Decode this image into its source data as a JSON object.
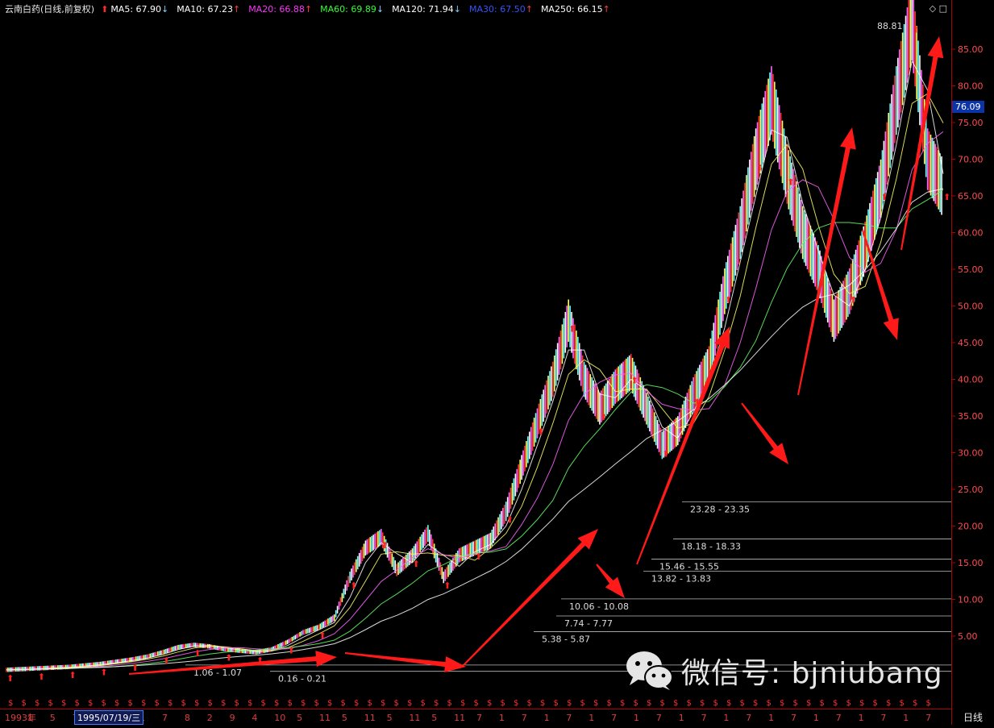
{
  "header": {
    "title": "云南白药(日线,前复权)",
    "ma": [
      {
        "label": "MA5: 67.90",
        "trend": "↓",
        "color": "#ffffff"
      },
      {
        "label": "MA10: 67.23",
        "trend": "↑",
        "color": "#ffffff"
      },
      {
        "label": "MA20: 66.88",
        "trend": "↑",
        "color": "#ff33ff"
      },
      {
        "label": "MA60: 69.89",
        "trend": "↓",
        "color": "#33ff33"
      },
      {
        "label": "MA120: 71.94",
        "trend": "↓",
        "color": "#ffffff"
      },
      {
        "label": "MA30: 67.50",
        "trend": "↑",
        "color": "#3355ff"
      },
      {
        "label": "MA250: 66.15",
        "trend": "↑",
        "color": "#ffffff"
      }
    ]
  },
  "chart_data": {
    "type": "line",
    "title": "云南白药(日线,前复权)",
    "ylim": [
      0,
      89
    ],
    "y_ticks": [
      5,
      10,
      15,
      20,
      25,
      30,
      35,
      40,
      45,
      50,
      55,
      60,
      65,
      70,
      75,
      80,
      85
    ],
    "y_tick_labels": [
      "5.00",
      "10.00",
      "15.00",
      "20.00",
      "25.00",
      "30.00",
      "35.00",
      "40.00",
      "45.00",
      "50.00",
      "55.00",
      "60.00",
      "65.00",
      "70.00",
      "75.00",
      "80.00",
      "85.00"
    ],
    "current_price": "76.09",
    "max_label": "88.81",
    "series": [
      {
        "values": [
          0.4,
          0.5,
          0.6,
          0.7,
          0.8,
          1.0,
          1.2,
          1.5,
          1.8,
          2.2,
          2.8,
          3.5,
          3.8,
          3.6,
          3.2,
          3.0,
          2.8,
          3.2,
          4.2,
          5.5,
          6.2,
          7.5,
          13,
          17,
          18.5,
          14,
          16,
          19,
          13,
          16,
          17,
          18,
          22,
          28,
          34,
          40,
          48,
          40,
          36,
          39,
          41,
          36,
          31,
          33,
          38,
          42,
          52,
          60,
          70,
          78,
          68,
          60,
          55,
          48,
          52,
          58,
          66,
          78,
          88.81,
          70,
          66
        ]
      }
    ],
    "support_lines": [
      "5.38 - 5.87",
      "7.74 - 7.77",
      "10.06 - 10.08",
      "13.82 - 13.83",
      "15.46 - 15.55",
      "18.18 - 18.33",
      "23.28 - 23.35",
      "1.06 - 1.07",
      "0.16 - 0.21"
    ],
    "x_tick_labels": [
      "1993年",
      "1",
      "5",
      "7",
      "1",
      "7",
      "1",
      "7",
      "8",
      "2",
      "9",
      "4",
      "10",
      "5",
      "11",
      "5",
      "11",
      "5",
      "11",
      "5",
      "11",
      "7",
      "1",
      "7",
      "1",
      "7",
      "1",
      "7",
      "1",
      "7",
      "1",
      "7",
      "1",
      "7",
      "1",
      "7",
      "1",
      "7",
      "1",
      "7",
      "1",
      "7"
    ]
  },
  "footer": {
    "date_cursor": "1995/07/19/三",
    "period": "日线"
  },
  "watermark": {
    "text": "微信号: bjniubang"
  },
  "window_controls": "◇ □"
}
